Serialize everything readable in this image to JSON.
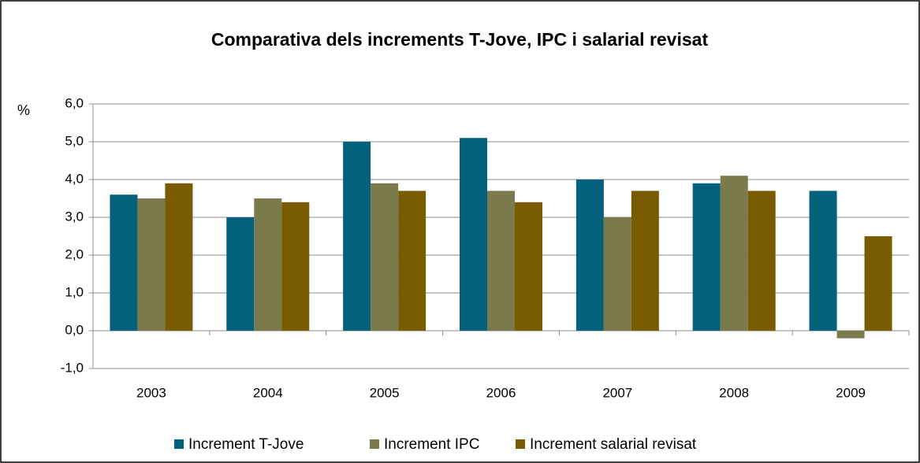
{
  "chart_data": {
    "type": "bar",
    "title": "Comparativa dels increments T-Jove, IPC i salarial revisat",
    "y_label": "%",
    "categories": [
      "2003",
      "2004",
      "2005",
      "2006",
      "2007",
      "2008",
      "2009"
    ],
    "series": [
      {
        "name": "Increment T-Jove",
        "color": "#03617b",
        "values": [
          3.6,
          3.0,
          5.0,
          5.1,
          4.0,
          3.9,
          3.7
        ]
      },
      {
        "name": "Increment IPC",
        "color": "#7a7a4c",
        "values": [
          3.5,
          3.5,
          3.9,
          3.7,
          3.0,
          4.1,
          -0.2
        ]
      },
      {
        "name": "Increment salarial revisat",
        "color": "#7a5c00",
        "values": [
          3.9,
          3.4,
          3.7,
          3.4,
          3.7,
          3.7,
          2.5
        ]
      }
    ],
    "ylim": [
      -1,
      6
    ],
    "yticks": [
      {
        "value": -1,
        "label": "-1,0"
      },
      {
        "value": 0,
        "label": "0,0"
      },
      {
        "value": 1,
        "label": "1,0"
      },
      {
        "value": 2,
        "label": "2,0"
      },
      {
        "value": 3,
        "label": "3,0"
      },
      {
        "value": 4,
        "label": "4,0"
      },
      {
        "value": 5,
        "label": "5,0"
      },
      {
        "value": 6,
        "label": "6,0"
      }
    ],
    "grid": true,
    "legend": "bottom"
  }
}
